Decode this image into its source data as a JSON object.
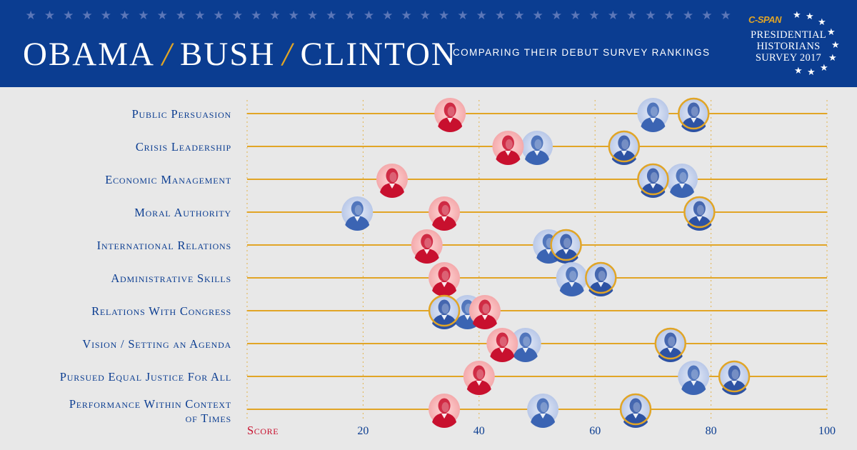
{
  "header": {
    "title_parts": [
      "OBAMA",
      "BUSH",
      "CLINTON"
    ],
    "separator": "/",
    "subtitle": "COMPARING THEIR DEBUT SURVEY RANKINGS",
    "logo": {
      "brand": "C-SPAN",
      "line1": "PRESIDENTIAL",
      "line2": "HISTORIANS",
      "line3": "SURVEY 2017"
    }
  },
  "colors": {
    "header_bg": "#0b3d91",
    "accent_gold": "#e1a526",
    "bush_red": "#c8102e",
    "clinton_blue": "#3b64b3",
    "obama_blue": "#2d52a3",
    "background": "#e8e8e8"
  },
  "chart_data": {
    "type": "scatter",
    "x_axis_label": "Score",
    "xlim": [
      0,
      100
    ],
    "xticks": [
      20,
      40,
      60,
      80,
      100
    ],
    "grid": true,
    "categories": [
      "Public Persuasion",
      "Crisis Leadership",
      "Economic Management",
      "Moral Authority",
      "International Relations",
      "Administrative Skills",
      "Relations With Congress",
      "Vision / Setting an Agenda",
      "Pursued Equal Justice For All",
      "Performance Within Context of Times"
    ],
    "series": [
      {
        "name": "Bush",
        "values": [
          35,
          45,
          25,
          34,
          31,
          34,
          41,
          44,
          40,
          34
        ]
      },
      {
        "name": "Clinton",
        "values": [
          70,
          50,
          75,
          19,
          52,
          56,
          38,
          48,
          77,
          51
        ]
      },
      {
        "name": "Obama",
        "values": [
          77,
          65,
          70,
          78,
          55,
          61,
          34,
          73,
          84,
          67
        ]
      }
    ]
  }
}
